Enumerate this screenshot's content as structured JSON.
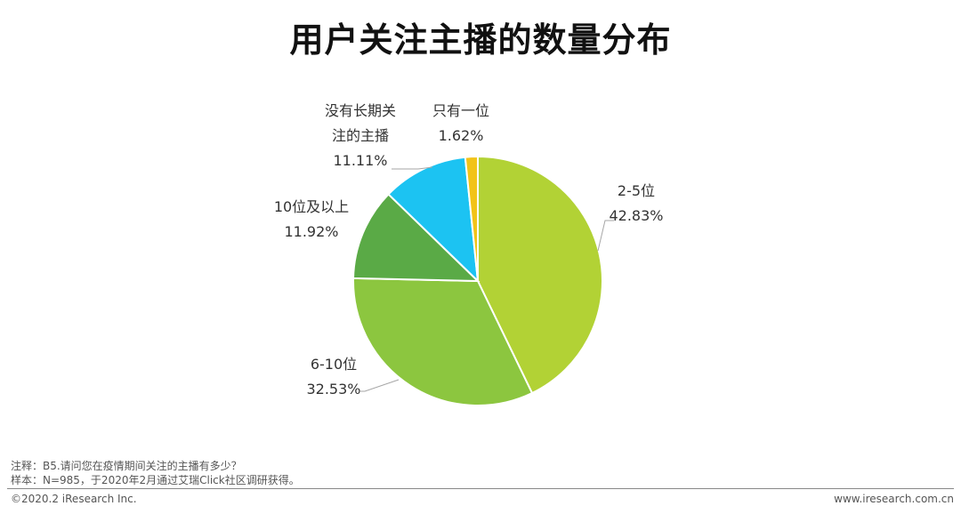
{
  "title": "用户关注主播的数量分布",
  "chart_data": {
    "type": "pie",
    "slices": [
      {
        "label_lines": [
          "2-5位"
        ],
        "value": 42.83,
        "value_text": "42.83%",
        "color": "#b2d235"
      },
      {
        "label_lines": [
          "6-10位"
        ],
        "value": 32.53,
        "value_text": "32.53%",
        "color": "#8cc63f"
      },
      {
        "label_lines": [
          "10位及以上"
        ],
        "value": 11.92,
        "value_text": "11.92%",
        "color": "#5aaa46"
      },
      {
        "label_lines": [
          "没有长期关",
          "注的主播"
        ],
        "value": 11.11,
        "value_text": "11.11%",
        "color": "#1cc3f2"
      },
      {
        "label_lines": [
          "只有一位"
        ],
        "value": 1.62,
        "value_text": "1.62%",
        "color": "#f2c318"
      }
    ]
  },
  "footnote": {
    "line1": "注释：B5.请问您在疫情期间关注的主播有多少？",
    "line2": "样本：N=985，于2020年2月通过艾瑞Click社区调研获得。"
  },
  "footer": {
    "copyright": "©2020.2 iResearch Inc.",
    "website": "www.iresearch.com.cn"
  }
}
